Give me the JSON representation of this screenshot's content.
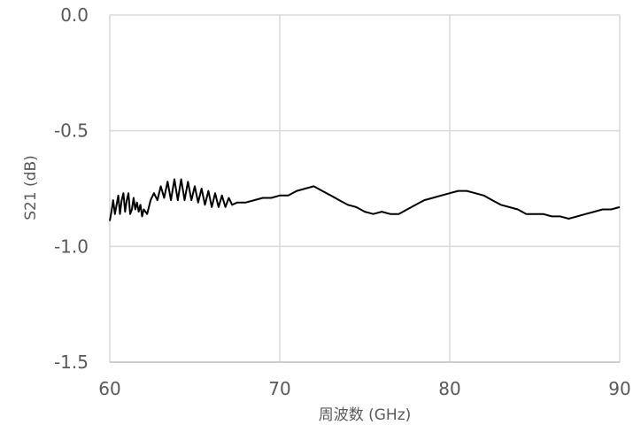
{
  "chart_data": {
    "type": "line",
    "title": "",
    "xlabel": "周波数 (GHz)",
    "ylabel": "S21 (dB)",
    "xlim": [
      60,
      90
    ],
    "ylim": [
      -1.5,
      0.0
    ],
    "x_ticks": [
      "60",
      "70",
      "80",
      "90"
    ],
    "y_ticks": [
      "0.0",
      "-0.5",
      "-1.0",
      "-1.5"
    ],
    "x_tick_values": [
      60,
      70,
      80,
      90
    ],
    "y_tick_values": [
      0.0,
      -0.5,
      -1.0,
      -1.5
    ],
    "grid": true,
    "line_color": "#000000",
    "grid_color": "#d9d9d9",
    "series": [
      {
        "x": [
          60.0,
          60.1,
          60.2,
          60.3,
          60.4,
          60.5,
          60.6,
          60.7,
          60.8,
          60.9,
          61.0,
          61.1,
          61.2,
          61.3,
          61.4,
          61.5,
          61.6,
          61.7,
          61.8,
          61.9,
          62.0,
          62.2,
          62.4,
          62.6,
          62.8,
          63.0,
          63.2,
          63.4,
          63.6,
          63.8,
          64.0,
          64.2,
          64.4,
          64.6,
          64.8,
          65.0,
          65.2,
          65.4,
          65.6,
          65.8,
          66.0,
          66.2,
          66.4,
          66.6,
          66.8,
          67.0,
          67.2,
          67.5,
          68.0,
          68.5,
          69.0,
          69.5,
          70.0,
          70.5,
          71.0,
          71.5,
          72.0,
          72.5,
          73.0,
          73.5,
          74.0,
          74.5,
          75.0,
          75.5,
          76.0,
          76.5,
          77.0,
          77.5,
          78.0,
          78.5,
          79.0,
          79.5,
          80.0,
          80.5,
          81.0,
          81.5,
          82.0,
          82.5,
          83.0,
          83.5,
          84.0,
          84.5,
          85.0,
          85.5,
          86.0,
          86.5,
          87.0,
          87.5,
          88.0,
          88.5,
          89.0,
          89.5,
          90.0
        ],
        "values": [
          -0.89,
          -0.85,
          -0.8,
          -0.86,
          -0.82,
          -0.78,
          -0.86,
          -0.8,
          -0.77,
          -0.85,
          -0.8,
          -0.77,
          -0.86,
          -0.84,
          -0.79,
          -0.84,
          -0.81,
          -0.85,
          -0.82,
          -0.87,
          -0.84,
          -0.86,
          -0.8,
          -0.77,
          -0.8,
          -0.74,
          -0.79,
          -0.72,
          -0.8,
          -0.71,
          -0.8,
          -0.71,
          -0.8,
          -0.72,
          -0.8,
          -0.74,
          -0.81,
          -0.75,
          -0.82,
          -0.76,
          -0.83,
          -0.77,
          -0.83,
          -0.78,
          -0.83,
          -0.79,
          -0.82,
          -0.81,
          -0.81,
          -0.8,
          -0.79,
          -0.79,
          -0.78,
          -0.78,
          -0.76,
          -0.75,
          -0.74,
          -0.76,
          -0.78,
          -0.8,
          -0.82,
          -0.83,
          -0.85,
          -0.86,
          -0.85,
          -0.86,
          -0.86,
          -0.84,
          -0.82,
          -0.8,
          -0.79,
          -0.78,
          -0.77,
          -0.76,
          -0.76,
          -0.77,
          -0.78,
          -0.8,
          -0.82,
          -0.83,
          -0.84,
          -0.86,
          -0.86,
          -0.86,
          -0.87,
          -0.87,
          -0.88,
          -0.87,
          -0.86,
          -0.85,
          -0.84,
          -0.84,
          -0.83
        ]
      }
    ]
  }
}
